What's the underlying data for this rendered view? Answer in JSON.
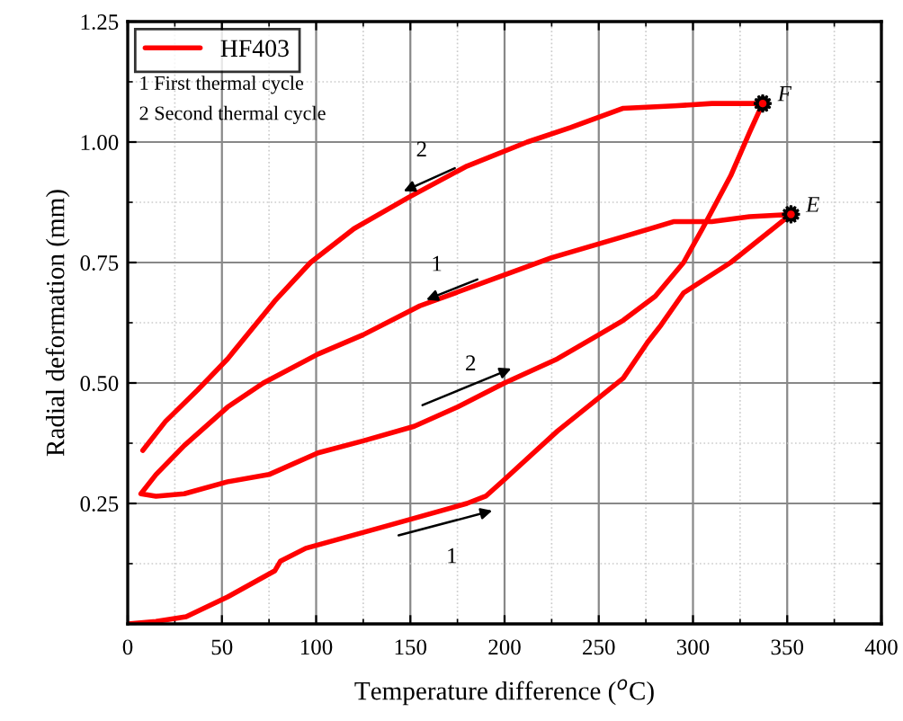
{
  "chart_data": {
    "type": "line",
    "xlabel": "Temperature difference ($^{o}$C)",
    "ylabel": "Radial deformation (mm)",
    "xlim": [
      0,
      400
    ],
    "xticks": [
      0,
      50,
      100,
      150,
      200,
      250,
      300,
      350,
      400
    ],
    "ylim": [
      0,
      1.25
    ],
    "yticks": [
      {
        "value": 0,
        "label": null
      },
      {
        "value": 0.25,
        "label": "0.25"
      },
      {
        "value": 0.5,
        "label": "0.50"
      },
      {
        "value": 0.75,
        "label": "0.75"
      },
      {
        "value": 1.0,
        "label": "1.00"
      },
      {
        "value": 1.25,
        "label": "1.25"
      }
    ],
    "grid": true,
    "legend": "top left",
    "marker": "none",
    "line_style": "solid",
    "series": [
      {
        "name": "HF403",
        "color": "#ff0000",
        "x": [
          0,
          15,
          31,
          53,
          78,
          81,
          94.5,
          139,
          180,
          190,
          200,
          228,
          263,
          276,
          283,
          295,
          320,
          352,
          330,
          310,
          290,
          260,
          225,
          190,
          155,
          125,
          101,
          72,
          53,
          30,
          15,
          7,
          15,
          30,
          53,
          75,
          101,
          125,
          152,
          175,
          200,
          228,
          250,
          263,
          280,
          295,
          305,
          320,
          330,
          337,
          310,
          290,
          263,
          235,
          212,
          180,
          149,
          120,
          97,
          78,
          53,
          37,
          20,
          8
        ],
        "values": [
          0,
          0.005,
          0.015,
          0.056,
          0.11,
          0.13,
          0.157,
          0.205,
          0.25,
          0.265,
          0.3,
          0.4,
          0.51,
          0.585,
          0.62,
          0.687,
          0.75,
          0.85,
          0.845,
          0.835,
          0.835,
          0.8,
          0.76,
          0.71,
          0.66,
          0.6,
          0.56,
          0.5,
          0.45,
          0.37,
          0.31,
          0.27,
          0.265,
          0.27,
          0.295,
          0.31,
          0.355,
          0.38,
          0.41,
          0.45,
          0.5,
          0.55,
          0.6,
          0.63,
          0.68,
          0.75,
          0.82,
          0.93,
          1.02,
          1.08,
          1.08,
          1.075,
          1.07,
          1.03,
          1.0,
          0.95,
          0.885,
          0.82,
          0.75,
          0.67,
          0.55,
          0.485,
          0.42,
          0.36
        ]
      }
    ],
    "annotations": [
      "1 First thermal cycle",
      "2 Second thermal cycle",
      {
        "text": "E",
        "x": 352,
        "y": 0.85
      },
      {
        "text": "F",
        "x": 337,
        "y": 1.08
      },
      "2",
      "1",
      "2",
      "1"
    ]
  }
}
